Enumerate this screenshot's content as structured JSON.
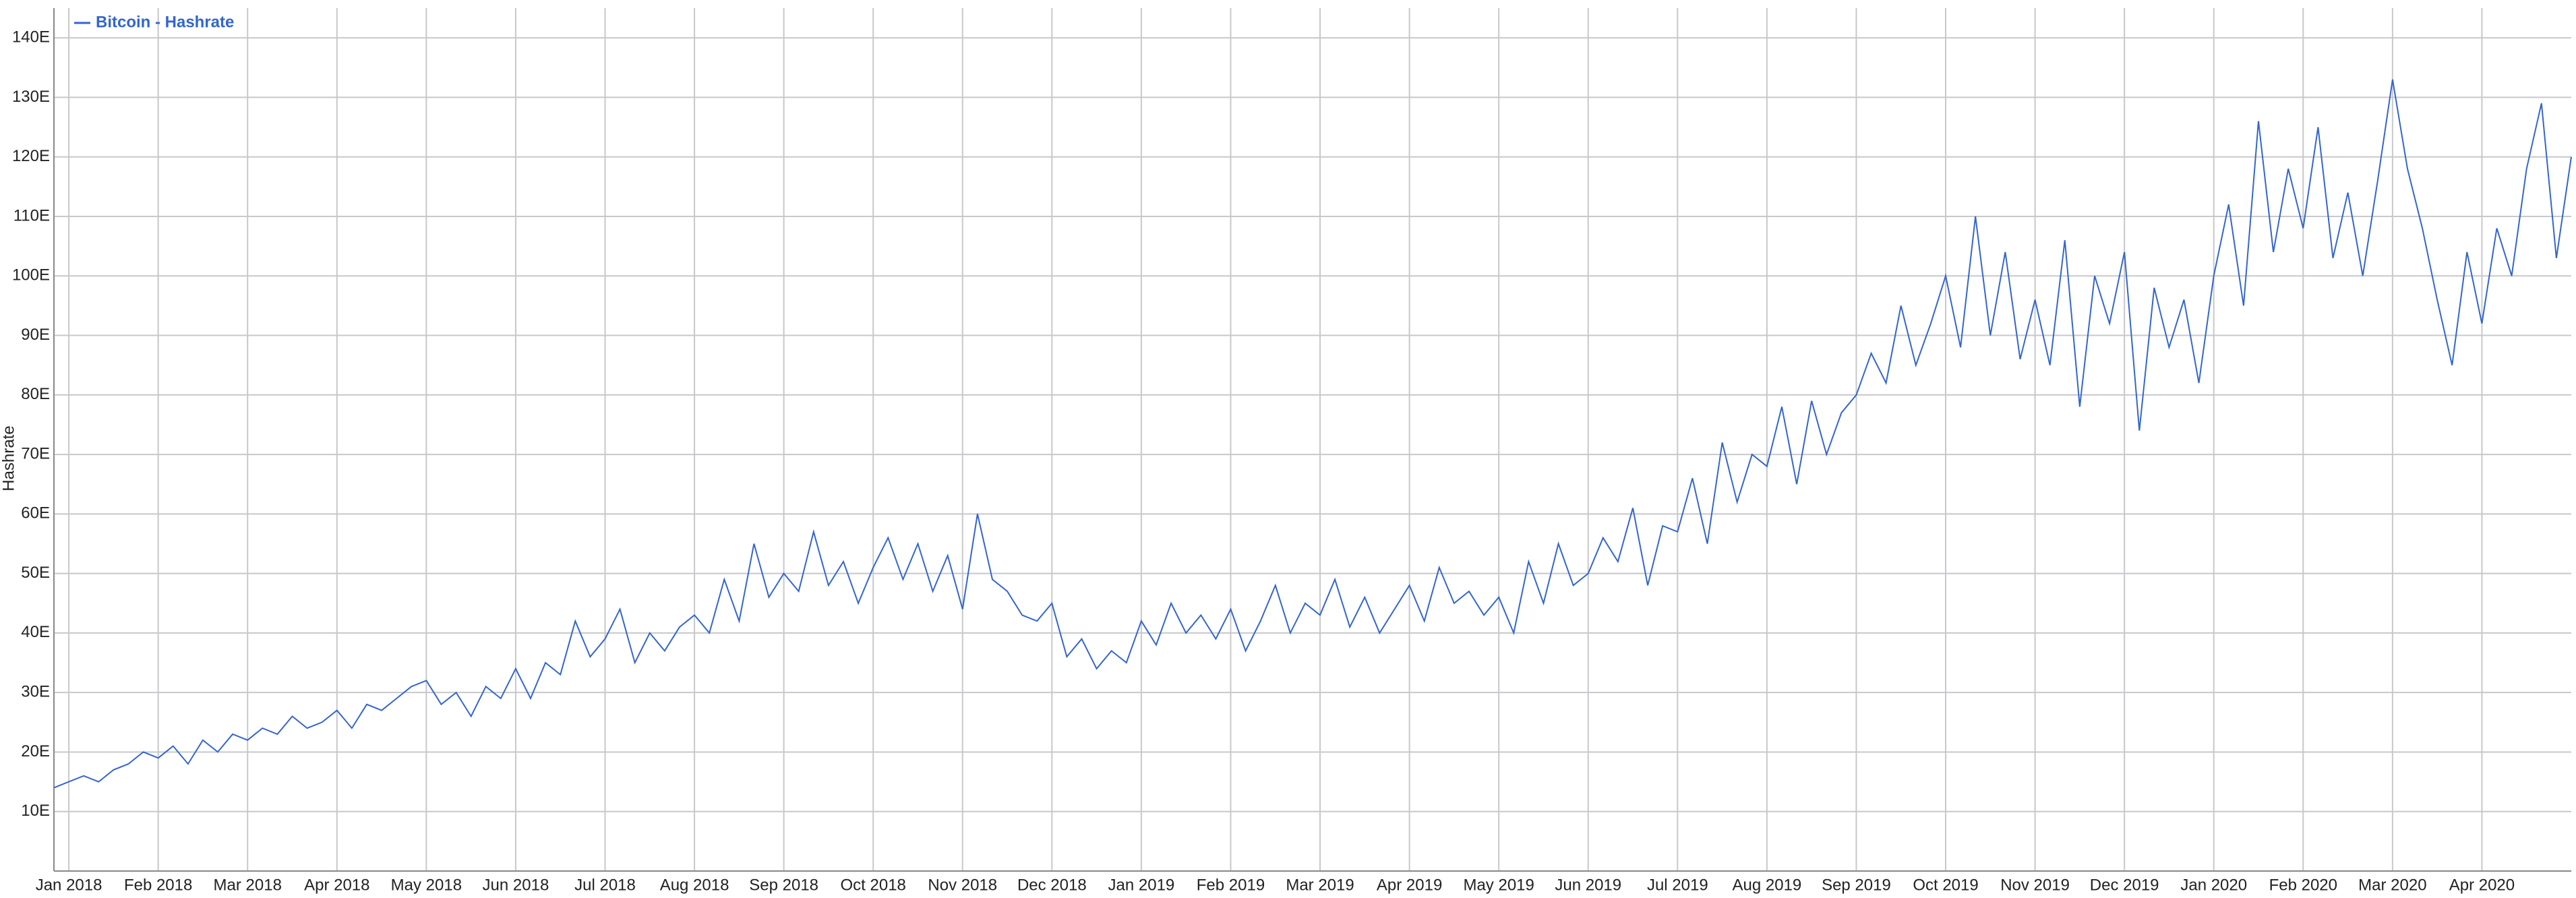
{
  "chart_data": {
    "type": "line",
    "y_label": "Hashrate",
    "categories": [
      null,
      "Jan 2018",
      null,
      null,
      null,
      null,
      null,
      "Feb 2018",
      null,
      null,
      null,
      null,
      null,
      "Mar 2018",
      null,
      null,
      null,
      null,
      null,
      "Apr 2018",
      null,
      null,
      null,
      null,
      null,
      "May 2018",
      null,
      null,
      null,
      null,
      null,
      "Jun 2018",
      null,
      null,
      null,
      null,
      null,
      "Jul 2018",
      null,
      null,
      null,
      null,
      null,
      "Aug 2018",
      null,
      null,
      null,
      null,
      null,
      "Sep 2018",
      null,
      null,
      null,
      null,
      null,
      "Oct 2018",
      null,
      null,
      null,
      null,
      null,
      "Nov 2018",
      null,
      null,
      null,
      null,
      null,
      "Dec 2018",
      null,
      null,
      null,
      null,
      null,
      "Jan 2019",
      null,
      null,
      null,
      null,
      null,
      "Feb 2019",
      null,
      null,
      null,
      null,
      null,
      "Mar 2019",
      null,
      null,
      null,
      null,
      null,
      "Apr 2019",
      null,
      null,
      null,
      null,
      null,
      "May 2019",
      null,
      null,
      null,
      null,
      null,
      "Jun 2019",
      null,
      null,
      null,
      null,
      null,
      "Jul 2019",
      null,
      null,
      null,
      null,
      null,
      "Aug 2019",
      null,
      null,
      null,
      null,
      null,
      "Sep 2019",
      null,
      null,
      null,
      null,
      null,
      "Oct 2019",
      null,
      null,
      null,
      null,
      null,
      "Nov 2019",
      null,
      null,
      null,
      null,
      null,
      "Dec 2019",
      null,
      null,
      null,
      null,
      null,
      "Jan 2020",
      null,
      null,
      null,
      null,
      null,
      "Feb 2020",
      null,
      null,
      null,
      null,
      null,
      "Mar 2020",
      null,
      null,
      null,
      null,
      null,
      "Apr 2020",
      null,
      null,
      null,
      null,
      null,
      null
    ],
    "series": [
      {
        "name": "Bitcoin - Hashrate",
        "color": "#3366cc",
        "values": [
          14,
          15,
          16,
          15,
          17,
          18,
          20,
          19,
          21,
          18,
          22,
          20,
          23,
          22,
          24,
          23,
          26,
          24,
          25,
          27,
          24,
          28,
          27,
          29,
          31,
          32,
          28,
          30,
          26,
          31,
          29,
          34,
          29,
          35,
          33,
          42,
          36,
          39,
          44,
          35,
          40,
          37,
          41,
          43,
          40,
          49,
          42,
          55,
          46,
          50,
          47,
          57,
          48,
          52,
          45,
          51,
          56,
          49,
          55,
          47,
          53,
          44,
          60,
          49,
          47,
          43,
          42,
          45,
          36,
          39,
          34,
          37,
          35,
          42,
          38,
          45,
          40,
          43,
          39,
          44,
          37,
          42,
          48,
          40,
          45,
          43,
          49,
          41,
          46,
          40,
          44,
          48,
          42,
          51,
          45,
          47,
          43,
          46,
          40,
          52,
          45,
          55,
          48,
          50,
          56,
          52,
          61,
          48,
          58,
          57,
          66,
          55,
          72,
          62,
          70,
          68,
          78,
          65,
          79,
          70,
          77,
          80,
          87,
          82,
          95,
          85,
          92,
          100,
          88,
          110,
          90,
          104,
          86,
          96,
          85,
          106,
          78,
          100,
          92,
          104,
          74,
          98,
          88,
          96,
          82,
          100,
          112,
          95,
          126,
          104,
          118,
          108,
          125,
          103,
          114,
          100,
          116,
          133,
          118,
          108,
          96,
          85,
          104,
          92,
          108,
          100,
          118,
          129,
          103,
          120
        ]
      }
    ],
    "ylim": [
      0,
      145
    ],
    "yticks": [
      {
        "value": 10,
        "label": "10E"
      },
      {
        "value": 20,
        "label": "20E"
      },
      {
        "value": 30,
        "label": "30E"
      },
      {
        "value": 40,
        "label": "40E"
      },
      {
        "value": 50,
        "label": "50E"
      },
      {
        "value": 60,
        "label": "60E"
      },
      {
        "value": 70,
        "label": "70E"
      },
      {
        "value": 80,
        "label": "80E"
      },
      {
        "value": 90,
        "label": "90E"
      },
      {
        "value": 100,
        "label": "100E"
      },
      {
        "value": 110,
        "label": "110E"
      },
      {
        "value": 120,
        "label": "120E"
      },
      {
        "value": 130,
        "label": "130E"
      },
      {
        "value": 140,
        "label": "140E"
      }
    ],
    "grid": true,
    "legend": "top-left"
  }
}
